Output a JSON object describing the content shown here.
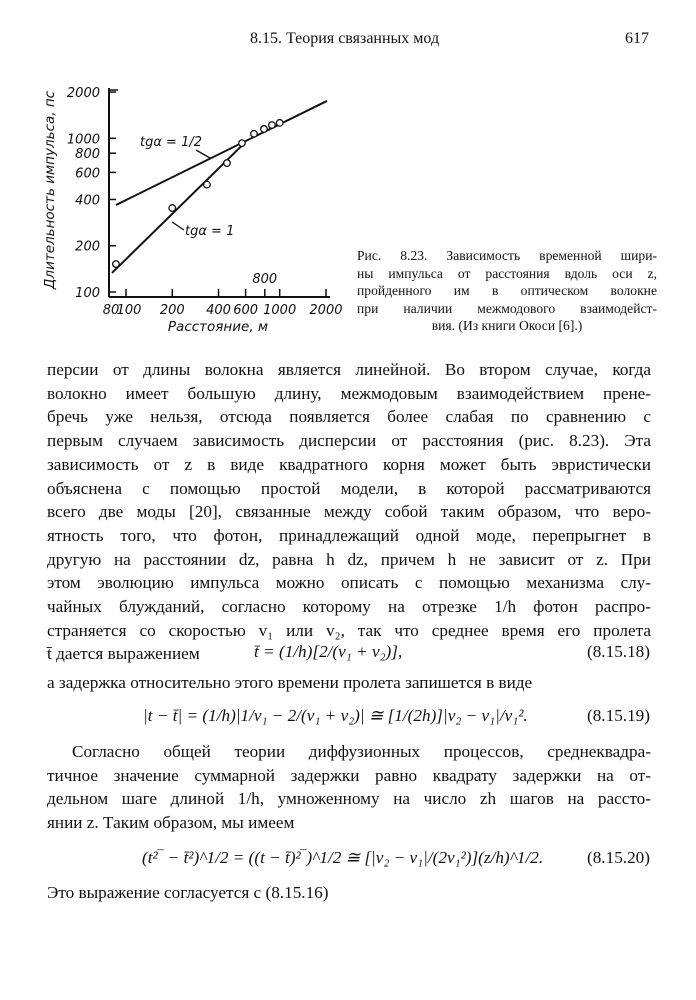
{
  "header": {
    "running_title": "8.15. Теория связанных мод",
    "page_number": "617"
  },
  "figure": {
    "caption_lines": [
      "Рис. 8.23. Зависимость временной шири-",
      "ны импульса от расстояния вдоль оси z,",
      "пройденного им в оптическом волокне",
      "при наличии межмодового взаимодейст-",
      "вия. (Из книги Окоси [6].)"
    ]
  },
  "chart_data": {
    "type": "scatter",
    "xlabel": "Расстояние, м",
    "ylabel": "Длительность импульса, пс",
    "x_scale": "log",
    "y_scale": "log",
    "xlim": [
      80,
      2000
    ],
    "ylim": [
      100,
      2000
    ],
    "x_ticks": [
      "80",
      "100",
      "200",
      "400",
      "600",
      "800",
      "1000",
      "2000"
    ],
    "x_tick_values": [
      80,
      100,
      200,
      400,
      600,
      800,
      1000,
      2000
    ],
    "y_ticks": [
      "100",
      "200",
      "400",
      "600",
      "800",
      "1000",
      "2000"
    ],
    "y_tick_values": [
      100,
      200,
      400,
      600,
      800,
      1000,
      2000
    ],
    "grid": false,
    "points": [
      [
        86,
        152
      ],
      [
        200,
        352
      ],
      [
        336,
        500
      ],
      [
        454,
        690
      ],
      [
        568,
        930
      ],
      [
        680,
        1070
      ],
      [
        790,
        1150
      ],
      [
        890,
        1220
      ],
      [
        1000,
        1260
      ]
    ],
    "lines": [
      {
        "label": "tgα = 1",
        "from": [
          81,
          133
        ],
        "to": [
          570,
          900
        ]
      },
      {
        "label": "tgα = 1/2",
        "from": [
          86,
          368
        ],
        "to": [
          2030,
          1750
        ]
      }
    ]
  },
  "body": {
    "para1_lines": [
      "персии от длины волокна является линейной. Во втором случае, когда",
      "волокно имеет большую длину, межмодовым взаимодействием прене-",
      "бречь уже нельзя, отсюда появляется более слабая по сравнению с",
      "первым случаем зависимость дисперсии от расстояния (рис. 8.23). Эта",
      "зависимость от z в виде квадратного корня может быть эвристически",
      "объяснена с помощью простой модели, в которой рассматриваются",
      "всего две моды [20], связанные между собой таким образом, что веро-",
      "ятность того, что фотон, принадлежащий одной моде, перепрыгнет в",
      "другую на расстоянии dz, равна h dz, причем h не зависит от z. При",
      "этом эволюцию импульса можно описать с помощью механизма слу-",
      "чайных блужданий, согласно которому на отрезке 1/h фотон распро-",
      "страняется со скоростью v₁ или v₂, так что среднее время его пролета",
      "t̄ дается выражением"
    ],
    "eq18": "t̄ = (1/h)[2/(v₁ + v₂)],",
    "eq18_no": "(8.15.18)",
    "between_line": "а задержка относительно этого времени пролета запишется в виде",
    "eq19": "|t − t̄| = (1/h)|1/v₁ − 2/(v₁ + v₂)| ≅ [1/(2h)]|v₂ − v₁|/v₁².",
    "eq19_no": "(8.15.19)",
    "para2_lines": [
      "Согласно общей теории диффузионных процессов, среднеквадра-",
      "тичное значение суммарной задержки равно квадрату задержки на от-",
      "дельном шаге длиной 1/h, умноженному на число zh шагов на рассто-",
      "янии z. Таким образом, мы имеем"
    ],
    "eq20": "(t²‾ − t̄²)^1/2 = ((t − t̄)²‾)^1/2 ≅ [|v₂ − v₁|/(2v₁²)](z/h)^1/2.",
    "eq20_no": "(8.15.20)",
    "last_line": "Это выражение согласуется с (8.15.16)"
  }
}
